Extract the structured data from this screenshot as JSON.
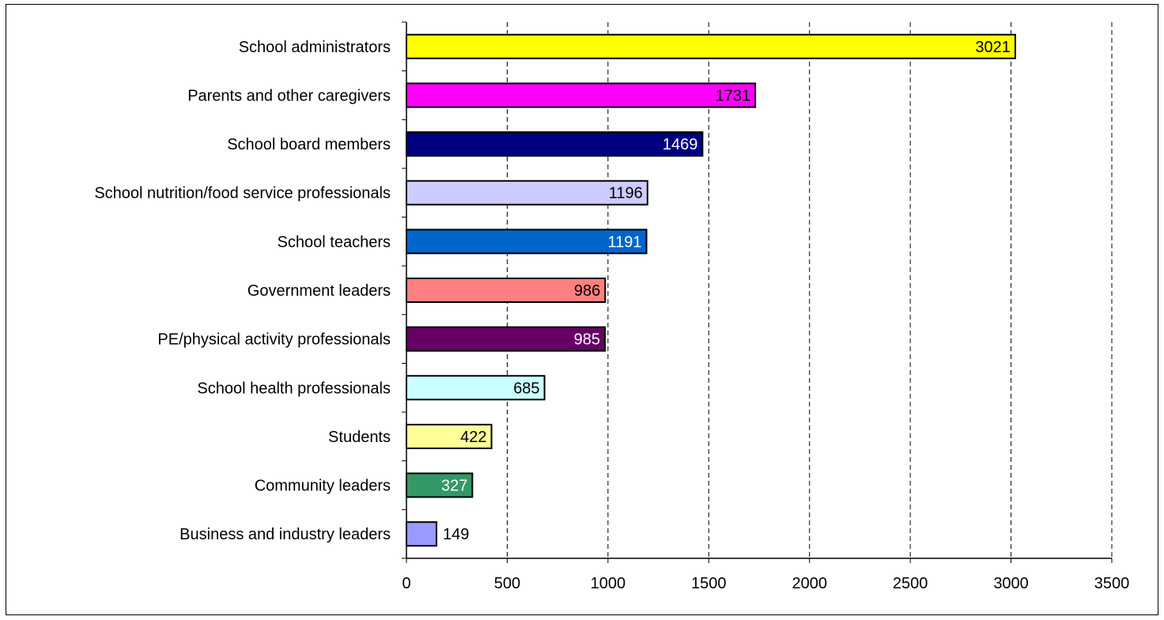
{
  "chart_data": {
    "type": "bar",
    "orientation": "horizontal",
    "title": "",
    "xlabel": "",
    "ylabel": "",
    "categories": [
      "School administrators",
      "Parents and other caregivers",
      "School board members",
      "School nutrition/food service professionals",
      "School teachers",
      "Government leaders",
      "PE/physical activity professionals",
      "School health professionals",
      "Students",
      "Community leaders",
      "Business and industry leaders"
    ],
    "values": [
      3021,
      1731,
      1469,
      1196,
      1191,
      986,
      985,
      685,
      422,
      327,
      149
    ],
    "colors": [
      "#ffff00",
      "#ff00ff",
      "#000080",
      "#ccccff",
      "#0066cc",
      "#ff8080",
      "#660066",
      "#ccffff",
      "#ffff99",
      "#339966",
      "#9999ff"
    ],
    "label_colors": [
      "#000000",
      "#000000",
      "#ffffff",
      "#000000",
      "#ffffff",
      "#000000",
      "#ffffff",
      "#000000",
      "#000000",
      "#ffffff",
      "#000000"
    ],
    "xlim": [
      0,
      3500
    ],
    "xticks": [
      0,
      500,
      1000,
      1500,
      2000,
      2500,
      3000,
      3500
    ],
    "grid": "vertical dashed",
    "legend": "none"
  }
}
